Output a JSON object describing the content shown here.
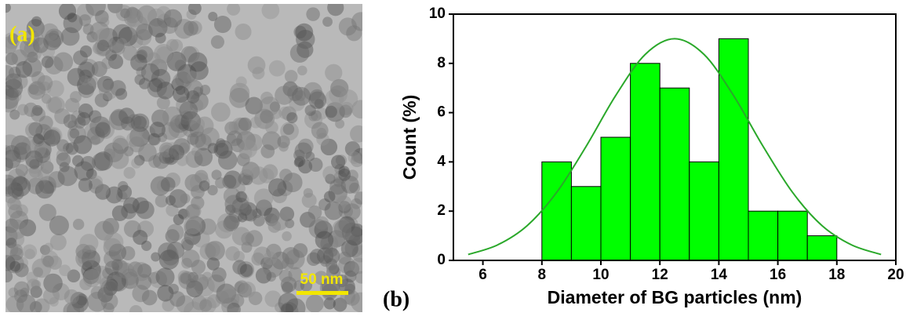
{
  "image_panel": {
    "label": "(a)",
    "scale_bar": "50 nm"
  },
  "chart_data": {
    "type": "histogram",
    "panel_label": "(b)",
    "x_label": "Diameter of BG particles (nm)",
    "y_label": "Count (%)",
    "bins": [
      8,
      9,
      10,
      11,
      12,
      13,
      14,
      15,
      16,
      17,
      18
    ],
    "values": [
      4,
      3,
      5,
      8,
      7,
      4,
      9,
      2,
      2,
      1
    ],
    "color": "#00ff00",
    "edge_color": "#000000",
    "fit": {
      "color": "#2aa82a",
      "x": [
        5.5,
        6.5,
        7.5,
        8.5,
        9.5,
        10.5,
        11.5,
        12.5,
        13.5,
        14.5,
        15.5,
        16.5,
        17.5,
        18.5,
        19.5
      ],
      "values": [
        0.24,
        0.63,
        1.41,
        2.76,
        4.63,
        6.69,
        8.36,
        9,
        8.36,
        6.69,
        4.63,
        2.76,
        1.41,
        0.63,
        0.24
      ]
    },
    "xlim": [
      5,
      20
    ],
    "ylim": [
      0,
      10
    ],
    "xticks": [
      6,
      8,
      10,
      12,
      14,
      16,
      18,
      20
    ],
    "yticks": [
      0,
      2,
      4,
      6,
      8,
      10
    ]
  }
}
